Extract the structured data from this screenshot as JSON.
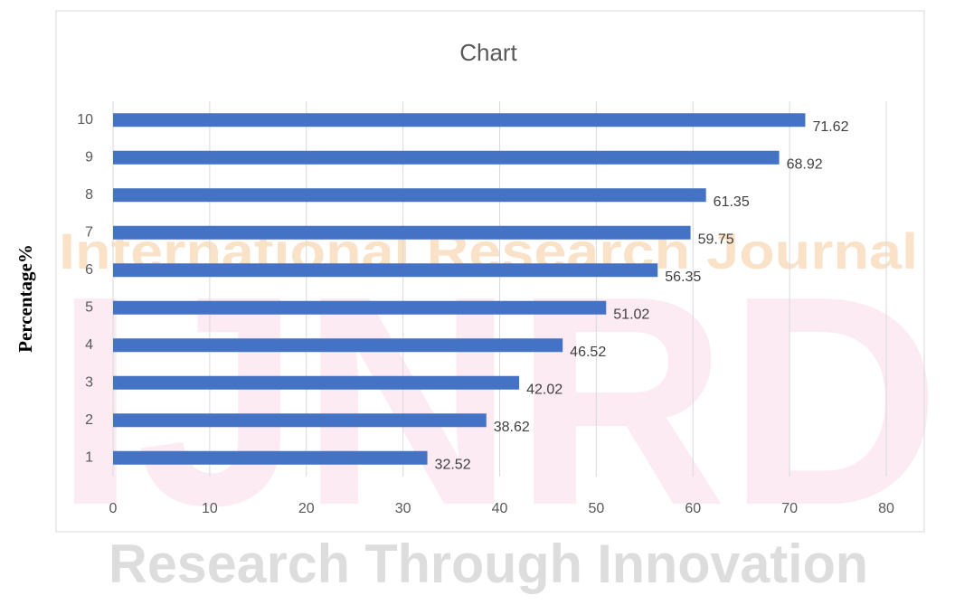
{
  "watermark": {
    "top": "International Research Journal",
    "letters": "IJNRD",
    "bottom": "Research Through Innovation"
  },
  "chart_data": {
    "type": "barh",
    "title": "Chart",
    "y_label": "Percentage%",
    "categories": [
      "1",
      "2",
      "3",
      "4",
      "5",
      "6",
      "7",
      "8",
      "9",
      "10"
    ],
    "values": [
      32.52,
      38.62,
      42.02,
      46.52,
      51.02,
      56.35,
      59.75,
      61.35,
      68.92,
      71.62
    ],
    "color": "#4472c4",
    "xlim": [
      0,
      80
    ],
    "xticks": [
      0,
      10,
      20,
      30,
      40,
      50,
      60,
      70,
      80
    ],
    "grid": true
  }
}
